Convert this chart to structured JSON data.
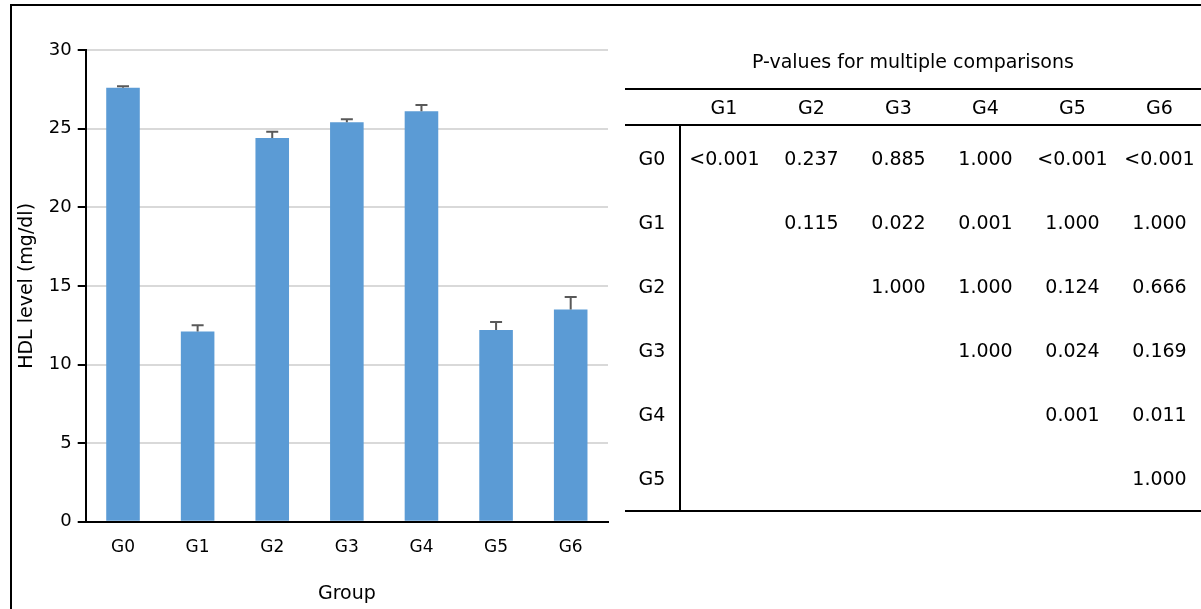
{
  "chart_data": [
    {
      "type": "bar",
      "xlabel": "Group",
      "ylabel": "HDL level (mg/dl)",
      "categories": [
        "G0",
        "G1",
        "G2",
        "G3",
        "G4",
        "G5",
        "G6"
      ],
      "values": [
        27.6,
        12.1,
        24.4,
        25.4,
        26.1,
        12.2,
        13.5
      ],
      "color": "#5b9bd5",
      "errors": [
        [
          27.6,
          27.7
        ],
        [
          12.1,
          12.5
        ],
        [
          24.4,
          24.8
        ],
        [
          25.4,
          25.6
        ],
        [
          26.1,
          26.5
        ],
        [
          12.2,
          12.7
        ],
        [
          13.5,
          14.3
        ]
      ],
      "ylim": [
        0,
        30
      ],
      "yticks": [
        0,
        5,
        10,
        15,
        20,
        25,
        30
      ],
      "grid": "y",
      "legend": false
    },
    {
      "type": "heatmap",
      "title": "P-values for multiple comparisons",
      "categories": [
        "G1",
        "G2",
        "G3",
        "G4",
        "G5",
        "G6"
      ],
      "y_categories": [
        "G0",
        "G1",
        "G2",
        "G3",
        "G4",
        "G5"
      ],
      "cells": [
        [
          null,
          0.237,
          0.885,
          1.0,
          null,
          null
        ],
        [
          null,
          0.115,
          0.022,
          0.001,
          1.0,
          1.0
        ],
        [
          null,
          null,
          1.0,
          1.0,
          0.124,
          0.666
        ],
        [
          null,
          null,
          null,
          1.0,
          0.024,
          0.169
        ],
        [
          null,
          null,
          null,
          null,
          0.001,
          0.011
        ],
        [
          null,
          null,
          null,
          null,
          null,
          1.0
        ]
      ],
      "cell_labels": [
        [
          "<0.001",
          "0.237",
          "0.885",
          "1.000",
          "<0.001",
          "<0.001"
        ],
        [
          null,
          "0.115",
          "0.022",
          "0.001",
          "1.000",
          "1.000"
        ],
        [
          null,
          null,
          "1.000",
          "1.000",
          "0.124",
          "0.666"
        ],
        [
          null,
          null,
          null,
          "1.000",
          "0.024",
          "0.169"
        ],
        [
          null,
          null,
          null,
          null,
          "0.001",
          "0.011"
        ],
        [
          null,
          null,
          null,
          null,
          null,
          "1.000"
        ]
      ]
    }
  ]
}
